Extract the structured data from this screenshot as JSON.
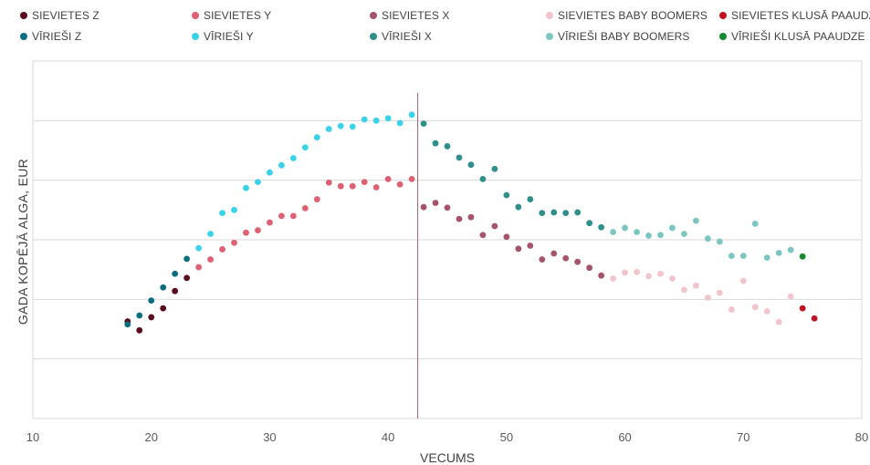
{
  "chart_data": {
    "type": "scatter",
    "xlabel": "VECUMS",
    "ylabel": "GADA KOPĒJĀ ALGA, EUR",
    "xlim": [
      10,
      80
    ],
    "x_ticks": [
      "10",
      "20",
      "30",
      "40",
      "50",
      "60",
      "70",
      "80"
    ],
    "ylim": [
      0,
      6
    ],
    "y_ticks_labeled": false,
    "grid": "horizontal",
    "legend_position": "top",
    "reference_line": {
      "x": 42.5,
      "color": "#a0606e"
    },
    "series": [
      {
        "name": "SIEVIETES Z",
        "color": "#5a0d1c",
        "points": [
          [
            18,
            1.63
          ],
          [
            19,
            1.48
          ],
          [
            20,
            1.7
          ],
          [
            21,
            1.85
          ],
          [
            22,
            2.14
          ],
          [
            23,
            2.36
          ]
        ]
      },
      {
        "name": "SIEVIETES Y",
        "color": "#e06073",
        "points": [
          [
            24,
            2.54
          ],
          [
            25,
            2.67
          ],
          [
            26,
            2.84
          ],
          [
            27,
            2.95
          ],
          [
            28,
            3.12
          ],
          [
            29,
            3.16
          ],
          [
            30,
            3.29
          ],
          [
            31,
            3.4
          ],
          [
            32,
            3.4
          ],
          [
            33,
            3.53
          ],
          [
            34,
            3.68
          ],
          [
            35,
            3.96
          ],
          [
            36,
            3.9
          ],
          [
            37,
            3.9
          ],
          [
            38,
            3.97
          ],
          [
            39,
            3.88
          ],
          [
            40,
            4.02
          ],
          [
            41,
            3.93
          ],
          [
            42,
            4.02
          ]
        ]
      },
      {
        "name": "SIEVIETES X",
        "color": "#a55469",
        "points": [
          [
            43,
            3.55
          ],
          [
            44,
            3.62
          ],
          [
            45,
            3.54
          ],
          [
            46,
            3.35
          ],
          [
            47,
            3.38
          ],
          [
            48,
            3.08
          ],
          [
            49,
            3.23
          ],
          [
            50,
            3.05
          ],
          [
            51,
            2.85
          ],
          [
            52,
            2.9
          ],
          [
            53,
            2.67
          ],
          [
            54,
            2.77
          ],
          [
            55,
            2.69
          ],
          [
            56,
            2.63
          ],
          [
            57,
            2.53
          ],
          [
            58,
            2.4
          ]
        ]
      },
      {
        "name": "SIEVIETES BABY BOOMERS",
        "color": "#f2c4cc",
        "points": [
          [
            59,
            2.35
          ],
          [
            60,
            2.45
          ],
          [
            61,
            2.46
          ],
          [
            62,
            2.39
          ],
          [
            63,
            2.43
          ],
          [
            64,
            2.35
          ],
          [
            65,
            2.16
          ],
          [
            66,
            2.23
          ],
          [
            67,
            2.03
          ],
          [
            68,
            2.11
          ],
          [
            69,
            1.83
          ],
          [
            70,
            2.31
          ],
          [
            71,
            1.87
          ],
          [
            72,
            1.8
          ],
          [
            73,
            1.62
          ],
          [
            74,
            2.05
          ]
        ]
      },
      {
        "name": "SIEVIETES KLUSĀ PAAUDZE",
        "color": "#c0111f",
        "points": [
          [
            75,
            1.85
          ],
          [
            76,
            1.68
          ]
        ]
      },
      {
        "name": "VĪRIEŠI Z",
        "color": "#0b6d80",
        "points": [
          [
            18,
            1.58
          ],
          [
            19,
            1.73
          ],
          [
            20,
            1.98
          ],
          [
            21,
            2.2
          ],
          [
            22,
            2.43
          ],
          [
            23,
            2.68
          ]
        ]
      },
      {
        "name": "VĪRIEŠI Y",
        "color": "#3ad2ea",
        "points": [
          [
            24,
            2.86
          ],
          [
            25,
            3.1
          ],
          [
            26,
            3.45
          ],
          [
            27,
            3.5
          ],
          [
            28,
            3.87
          ],
          [
            29,
            3.97
          ],
          [
            30,
            4.13
          ],
          [
            31,
            4.25
          ],
          [
            32,
            4.37
          ],
          [
            33,
            4.55
          ],
          [
            34,
            4.72
          ],
          [
            35,
            4.86
          ],
          [
            36,
            4.91
          ],
          [
            37,
            4.9
          ],
          [
            38,
            5.02
          ],
          [
            39,
            5.0
          ],
          [
            40,
            5.04
          ],
          [
            41,
            4.96
          ],
          [
            42,
            5.1
          ]
        ]
      },
      {
        "name": "VĪRIEŠI X",
        "color": "#2f8f8a",
        "points": [
          [
            43,
            4.95
          ],
          [
            44,
            4.62
          ],
          [
            45,
            4.57
          ],
          [
            46,
            4.38
          ],
          [
            47,
            4.26
          ],
          [
            48,
            4.02
          ],
          [
            49,
            4.19
          ],
          [
            50,
            3.75
          ],
          [
            51,
            3.55
          ],
          [
            52,
            3.68
          ],
          [
            53,
            3.45
          ],
          [
            54,
            3.46
          ],
          [
            55,
            3.45
          ],
          [
            56,
            3.46
          ],
          [
            57,
            3.28
          ],
          [
            58,
            3.21
          ]
        ]
      },
      {
        "name": "VĪRIEŠI BABY BOOMERS",
        "color": "#7cc6c2",
        "points": [
          [
            59,
            3.13
          ],
          [
            60,
            3.2
          ],
          [
            61,
            3.13
          ],
          [
            62,
            3.07
          ],
          [
            63,
            3.08
          ],
          [
            64,
            3.2
          ],
          [
            65,
            3.1
          ],
          [
            66,
            3.32
          ],
          [
            67,
            3.02
          ],
          [
            68,
            2.97
          ],
          [
            69,
            2.73
          ],
          [
            70,
            2.73
          ],
          [
            71,
            3.27
          ],
          [
            72,
            2.7
          ],
          [
            73,
            2.78
          ],
          [
            74,
            2.83
          ]
        ]
      },
      {
        "name": "VĪRIEŠI KLUSĀ PAAUDZE",
        "color": "#138a2e",
        "points": [
          [
            75,
            2.72
          ]
        ]
      }
    ]
  }
}
